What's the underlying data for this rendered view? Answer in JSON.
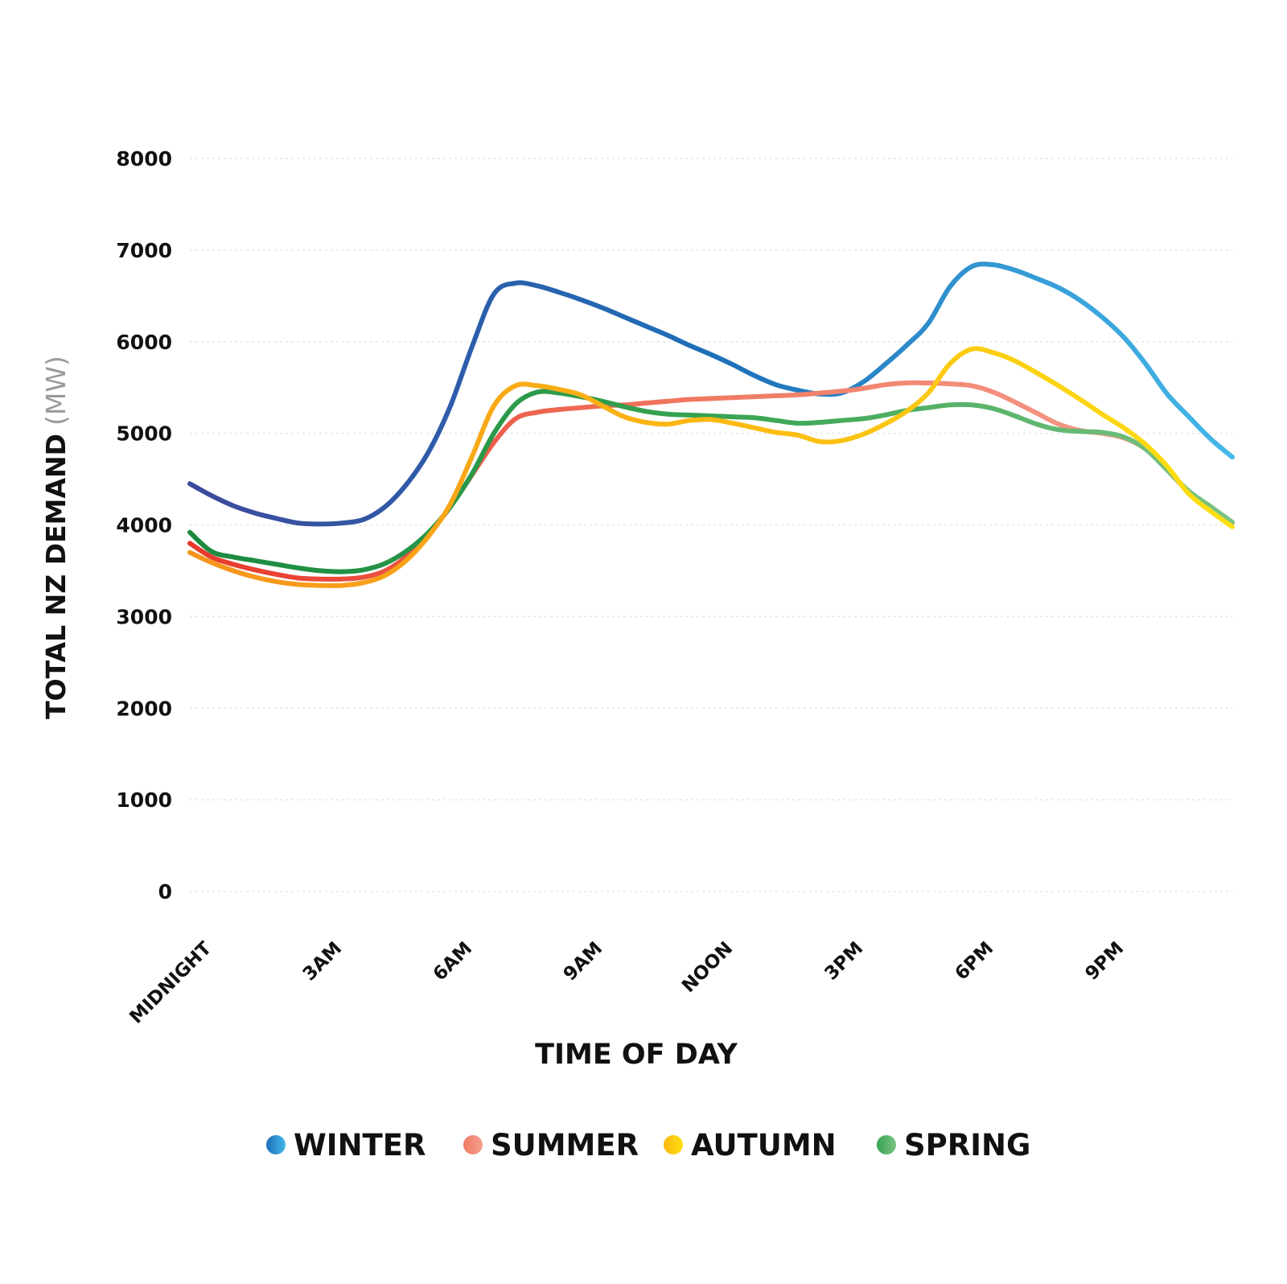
{
  "chart_data": {
    "type": "line",
    "xlabel": "TIME OF DAY",
    "ylabel": "TOTAL NZ DEMAND",
    "ylabel_unit": "(MW)",
    "ylim": [
      0,
      8000
    ],
    "xlim": [
      0,
      24
    ],
    "yticks": [
      0,
      1000,
      2000,
      3000,
      4000,
      5000,
      6000,
      7000,
      8000
    ],
    "xticks": [
      {
        "x": 0,
        "label": "MIDNIGHT"
      },
      {
        "x": 3,
        "label": "3AM"
      },
      {
        "x": 6,
        "label": "6AM"
      },
      {
        "x": 9,
        "label": "9AM"
      },
      {
        "x": 12,
        "label": "NOON"
      },
      {
        "x": 15,
        "label": "3PM"
      },
      {
        "x": 18,
        "label": "6PM"
      },
      {
        "x": 21,
        "label": "9PM"
      }
    ],
    "grid": true,
    "legend_position": "bottom",
    "x": [
      0,
      0.5,
      1,
      1.5,
      2,
      2.5,
      3,
      3.5,
      4,
      4.5,
      5,
      5.5,
      6,
      6.5,
      7,
      7.5,
      8,
      8.5,
      9,
      9.5,
      10,
      10.5,
      11,
      11.5,
      12,
      12.5,
      13,
      13.5,
      14,
      14.5,
      15,
      15.5,
      16,
      16.5,
      17,
      17.5,
      18,
      18.5,
      19,
      19.5,
      20,
      20.5,
      21,
      21.5,
      22,
      22.5,
      23,
      23.5,
      24
    ],
    "series": [
      {
        "name": "WINTER",
        "colors": [
          "#3d4a9c",
          "#1d6fb8",
          "#45b8e8"
        ],
        "values": [
          4450,
          4320,
          4210,
          4130,
          4070,
          4020,
          4010,
          4020,
          4060,
          4200,
          4450,
          4800,
          5300,
          5950,
          6520,
          6640,
          6610,
          6540,
          6460,
          6370,
          6270,
          6170,
          6070,
          5960,
          5860,
          5750,
          5630,
          5530,
          5470,
          5430,
          5440,
          5560,
          5750,
          5960,
          6200,
          6600,
          6820,
          6840,
          6780,
          6690,
          6590,
          6450,
          6270,
          6050,
          5760,
          5430,
          5180,
          4940,
          4740
        ]
      },
      {
        "name": "SUMMER",
        "colors": [
          "#e8382b",
          "#f07a62",
          "#f5a090"
        ],
        "values": [
          3800,
          3650,
          3570,
          3510,
          3460,
          3420,
          3410,
          3410,
          3430,
          3500,
          3660,
          3900,
          4200,
          4550,
          4900,
          5160,
          5230,
          5260,
          5280,
          5300,
          5310,
          5330,
          5350,
          5370,
          5380,
          5390,
          5400,
          5410,
          5420,
          5440,
          5460,
          5490,
          5530,
          5550,
          5550,
          5540,
          5520,
          5450,
          5340,
          5220,
          5100,
          5030,
          5000,
          4950,
          4830,
          4600,
          4360,
          4200,
          4020
        ]
      },
      {
        "name": "AUTUMN",
        "colors": [
          "#f7941d",
          "#fbb812",
          "#fde010"
        ],
        "values": [
          3700,
          3590,
          3500,
          3430,
          3380,
          3350,
          3340,
          3340,
          3370,
          3450,
          3620,
          3880,
          4230,
          4750,
          5300,
          5520,
          5520,
          5480,
          5420,
          5300,
          5180,
          5120,
          5100,
          5140,
          5150,
          5110,
          5060,
          5010,
          4980,
          4910,
          4920,
          4990,
          5100,
          5240,
          5440,
          5760,
          5920,
          5880,
          5790,
          5660,
          5520,
          5370,
          5210,
          5060,
          4880,
          4640,
          4340,
          4150,
          3980
        ]
      },
      {
        "name": "SPRING",
        "colors": [
          "#1b8a3f",
          "#37a351",
          "#7ac383"
        ],
        "values": [
          3920,
          3710,
          3650,
          3610,
          3570,
          3530,
          3500,
          3490,
          3510,
          3580,
          3720,
          3920,
          4200,
          4560,
          5000,
          5320,
          5450,
          5440,
          5400,
          5350,
          5290,
          5240,
          5210,
          5200,
          5190,
          5180,
          5170,
          5140,
          5110,
          5120,
          5140,
          5160,
          5200,
          5250,
          5280,
          5310,
          5310,
          5270,
          5190,
          5100,
          5040,
          5020,
          5010,
          4960,
          4830,
          4600,
          4370,
          4200,
          4030
        ]
      }
    ]
  }
}
